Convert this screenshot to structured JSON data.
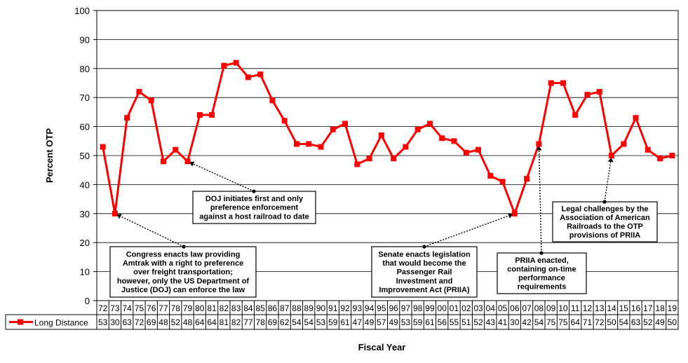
{
  "chart_data": {
    "type": "line",
    "categories": [
      "72",
      "73",
      "74",
      "75",
      "76",
      "77",
      "78",
      "79",
      "80",
      "81",
      "82",
      "83",
      "84",
      "85",
      "86",
      "87",
      "88",
      "89",
      "90",
      "91",
      "92",
      "93",
      "94",
      "95",
      "96",
      "97",
      "98",
      "99",
      "00",
      "01",
      "02",
      "03",
      "04",
      "05",
      "06",
      "07",
      "08",
      "09",
      "10",
      "11",
      "12",
      "13",
      "14",
      "15",
      "16",
      "17",
      "18",
      "19"
    ],
    "series": [
      {
        "name": "Long Distance",
        "color": "#ff0000",
        "values": [
          53,
          30,
          63,
          72,
          69,
          48,
          52,
          48,
          64,
          64,
          81,
          82,
          77,
          78,
          69,
          62,
          54,
          54,
          53,
          59,
          61,
          47,
          49,
          57,
          49,
          53,
          59,
          61,
          56,
          55,
          51,
          52,
          43,
          41,
          30,
          42,
          54,
          75,
          75,
          64,
          71,
          72,
          50,
          54,
          63,
          52,
          49,
          50
        ]
      }
    ],
    "ylabel": "Percent OTP",
    "xlabel": "Fiscal Year",
    "ylim": [
      0,
      100
    ],
    "yticks": [
      0,
      10,
      20,
      30,
      40,
      50,
      60,
      70,
      80,
      90,
      100
    ],
    "grid": true,
    "legend": "data-table",
    "annotations": [
      {
        "lines": [
          "Congress enacts law providing",
          "Amtrak with a right to preference",
          "over freight transportation;",
          "however, only the US Department of",
          "Justice (DOJ) can enforce the law"
        ],
        "x": "73",
        "y": 30
      },
      {
        "lines": [
          "DOJ initiates first and only",
          "preference enforcement",
          "against a host railroad to date"
        ],
        "x": "79",
        "y": 48
      },
      {
        "lines": [
          "Senate enacts legislation",
          "that would become the",
          "Passenger Rail",
          "Investment and",
          "Improvement Act (PRIIA)"
        ],
        "x": "06",
        "y": 30
      },
      {
        "lines": [
          "PRIIA enacted,",
          "containing on-time",
          "performance",
          "requirements"
        ],
        "x": "08",
        "y": 54
      },
      {
        "lines": [
          "Legal challenges by the",
          "Association of American",
          "Railroads to the OTP",
          "provisions of PRIIA"
        ],
        "x": "14",
        "y": 50
      }
    ]
  }
}
